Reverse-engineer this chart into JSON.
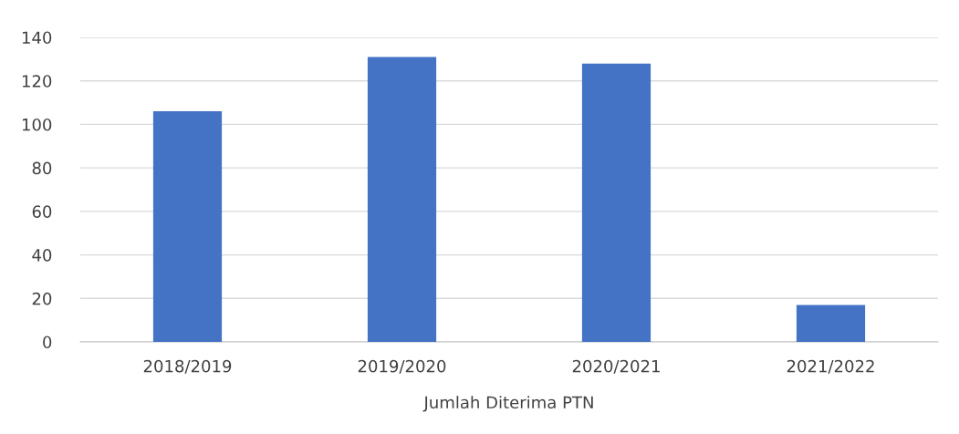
{
  "chart_data": {
    "type": "bar",
    "categories": [
      "2018/2019",
      "2019/2020",
      "2020/2021",
      "2021/2022"
    ],
    "values": [
      106,
      131,
      128,
      17
    ],
    "color": "#4472c4",
    "xlabel": "Jumlah Diterima PTN",
    "ylim": [
      0,
      140
    ],
    "yticks": [
      0,
      20,
      40,
      60,
      80,
      100,
      120,
      140
    ],
    "grid": "y"
  }
}
